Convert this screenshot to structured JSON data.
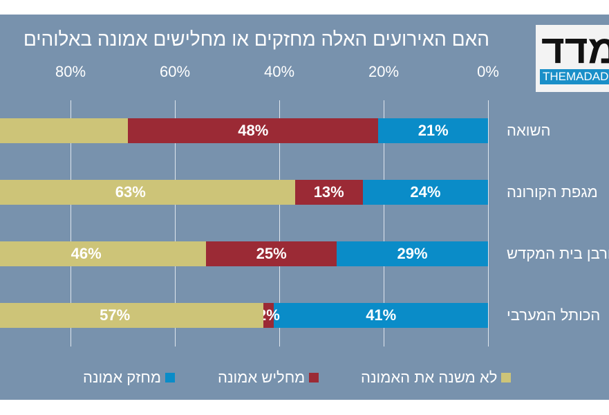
{
  "logo": {
    "hebrew": "מדד",
    "latin": "THEMADAD"
  },
  "chart_data": {
    "type": "bar",
    "orientation": "horizontal-stacked",
    "title": "האם האירועים האלה מחזקים או מחלישים אמונה באלוהים",
    "direction": "right-to-left",
    "xlim": [
      0,
      100
    ],
    "x_ticks": [
      "0%",
      "20%",
      "40%",
      "60%",
      "80%"
    ],
    "grid": true,
    "legend_position": "bottom",
    "categories": [
      "השואה",
      "מגפת הקורונה",
      "חורבן בית המקדש",
      "הכותל המערבי"
    ],
    "series": [
      {
        "name": "מחזק אמונה",
        "color": "#0a8cc8",
        "values": [
          21,
          24,
          29,
          41
        ],
        "labels": [
          "21%",
          "24%",
          "29%",
          "41%"
        ]
      },
      {
        "name": "מחליש אמונה",
        "color": "#9b2a35",
        "values": [
          48,
          13,
          25,
          2
        ],
        "labels": [
          "48%",
          "13%",
          "25%",
          "2%"
        ]
      },
      {
        "name": "לא משנה את האמונה",
        "color": "#cdc478",
        "values": [
          31,
          63,
          46,
          57
        ],
        "labels": [
          "",
          "63%",
          "46%",
          "57%"
        ]
      }
    ]
  }
}
